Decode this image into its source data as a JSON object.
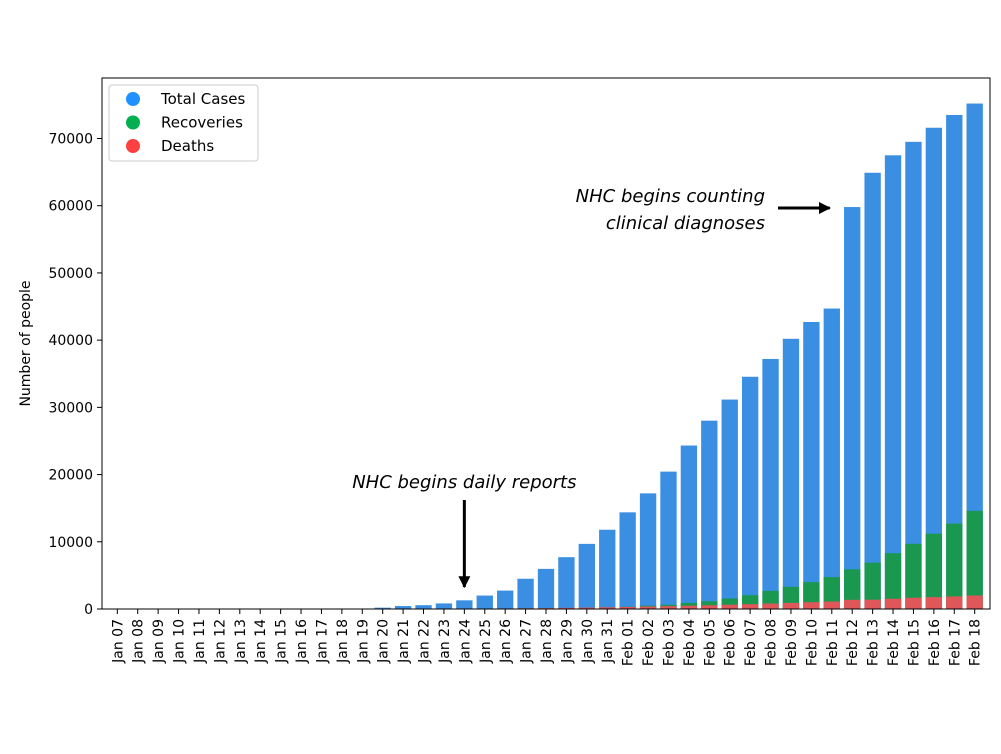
{
  "chart_data": {
    "type": "bar",
    "title": "",
    "xlabel": "",
    "ylabel": "Number of people",
    "ylim": [
      0,
      79000
    ],
    "yticks": [
      0,
      10000,
      20000,
      30000,
      40000,
      50000,
      60000,
      70000
    ],
    "grid": false,
    "legend_position": "top-left",
    "stacked_overlay": true,
    "categories": [
      "Jan 07",
      "Jan 08",
      "Jan 09",
      "Jan 10",
      "Jan 11",
      "Jan 12",
      "Jan 13",
      "Jan 14",
      "Jan 15",
      "Jan 16",
      "Jan 17",
      "Jan 18",
      "Jan 19",
      "Jan 20",
      "Jan 21",
      "Jan 22",
      "Jan 23",
      "Jan 24",
      "Jan 25",
      "Jan 26",
      "Jan 27",
      "Jan 28",
      "Jan 29",
      "Jan 30",
      "Jan 31",
      "Feb 01",
      "Feb 02",
      "Feb 03",
      "Feb 04",
      "Feb 05",
      "Feb 06",
      "Feb 07",
      "Feb 08",
      "Feb 09",
      "Feb 10",
      "Feb 11",
      "Feb 12",
      "Feb 13",
      "Feb 14",
      "Feb 15",
      "Feb 16",
      "Feb 17",
      "Feb 18"
    ],
    "series": [
      {
        "name": "Total Cases",
        "color": "#3a8fe2",
        "legend_color": "#1e90ff",
        "values": [
          0,
          0,
          0,
          0,
          0,
          0,
          0,
          0,
          0,
          0,
          0,
          0,
          0,
          200,
          440,
          570,
          830,
          1290,
          2000,
          2740,
          4500,
          5970,
          7710,
          9690,
          11790,
          14380,
          17200,
          20440,
          24320,
          28020,
          31160,
          34550,
          37200,
          40200,
          42700,
          44700,
          59800,
          64900,
          67500,
          69500,
          71600,
          73500,
          75200
        ]
      },
      {
        "name": "Recoveries",
        "color": "#1a9850",
        "legend_color": "#00b050",
        "values": [
          0,
          0,
          0,
          0,
          0,
          0,
          0,
          0,
          0,
          0,
          0,
          0,
          0,
          25,
          28,
          35,
          38,
          40,
          50,
          60,
          100,
          110,
          130,
          170,
          240,
          330,
          480,
          630,
          910,
          1150,
          1560,
          2050,
          2700,
          3300,
          4000,
          4740,
          5900,
          6900,
          8300,
          9700,
          11200,
          12700,
          14600
        ]
      },
      {
        "name": "Deaths",
        "color": "#e05759",
        "legend_color": "#ff4040",
        "values": [
          0,
          0,
          0,
          0,
          0,
          0,
          0,
          0,
          0,
          0,
          0,
          0,
          0,
          0,
          10,
          17,
          25,
          41,
          56,
          80,
          106,
          132,
          170,
          213,
          259,
          304,
          361,
          425,
          490,
          563,
          636,
          722,
          811,
          908,
          1016,
          1113,
          1367,
          1380,
          1523,
          1665,
          1770,
          1868,
          2004
        ]
      }
    ],
    "annotations": [
      {
        "text": "NHC begins daily reports",
        "target_category": "Jan 24",
        "direction": "down"
      },
      {
        "text_lines": [
          "NHC begins counting",
          "clinical diagnoses"
        ],
        "target_category": "Feb 11",
        "direction": "right"
      }
    ]
  }
}
